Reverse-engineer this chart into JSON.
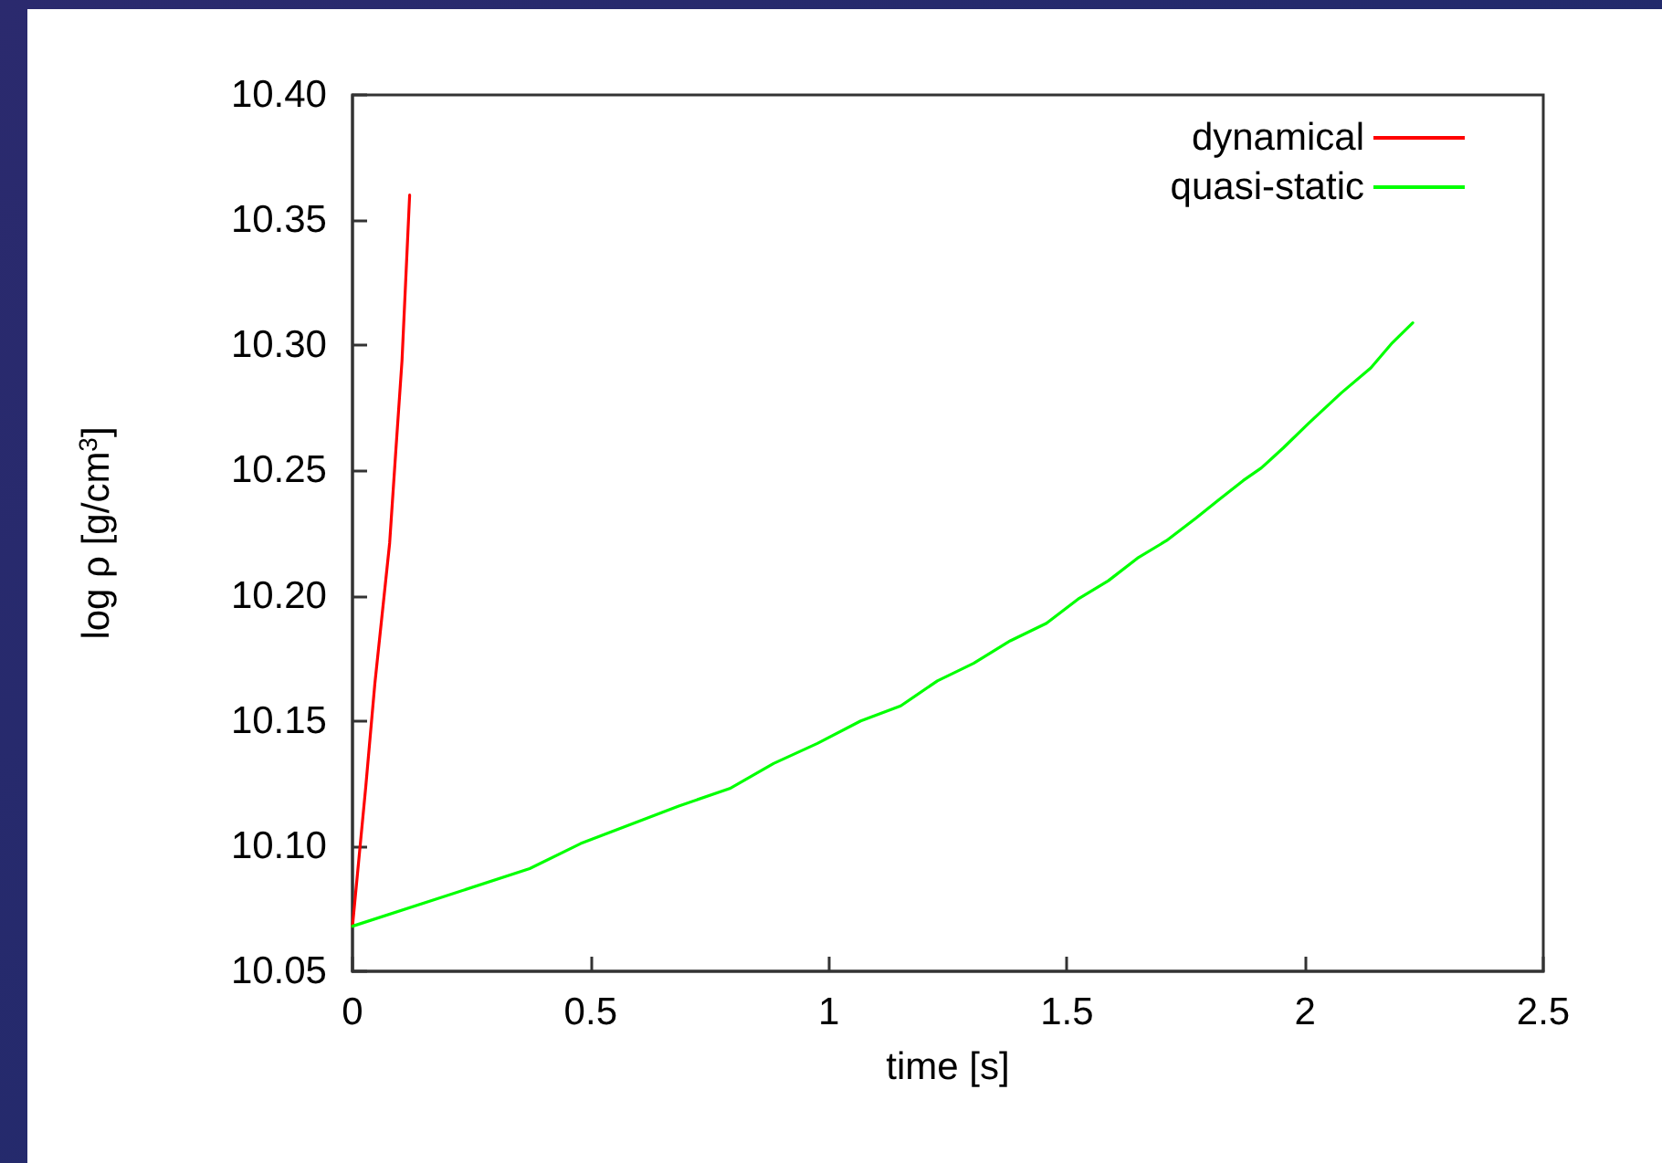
{
  "chart_data": {
    "type": "line",
    "xlabel": "time [s]",
    "ylabel": "log ρ [g/cm$^{3}$]",
    "xlim": [
      0,
      2.5
    ],
    "xticks": [
      0,
      0.5,
      1,
      1.5,
      2,
      2.5
    ],
    "ylim": [
      10.05,
      10.4
    ],
    "yticks": [
      {
        "value": 10.05,
        "label": "10.05"
      },
      {
        "value": 10.1,
        "label": "10.10"
      },
      {
        "value": 10.15,
        "label": "10.15"
      },
      {
        "value": 10.2,
        "label": "10.20"
      },
      {
        "value": 10.25,
        "label": "10.25"
      },
      {
        "value": 10.3,
        "label": "10.30"
      },
      {
        "value": 10.35,
        "label": "10.35"
      },
      {
        "value": 10.4,
        "label": "10.40"
      }
    ],
    "grid": false,
    "legend": "top right",
    "marker": "none",
    "line_style": "solid",
    "series": [
      {
        "name": "dynamical",
        "color": "#ff0000",
        "x": [
          0,
          0.028,
          0.047,
          0.078,
          0.091,
          0.104,
          0.12
        ],
        "values": [
          10.068,
          10.124,
          10.165,
          10.221,
          10.258,
          10.294,
          10.36
        ]
      },
      {
        "name": "quasi-static",
        "color": "#00ff00",
        "x": [
          0,
          0.372,
          0.479,
          0.685,
          0.792,
          0.884,
          0.976,
          1.067,
          1.151,
          1.228,
          1.304,
          1.381,
          1.457,
          1.526,
          1.587,
          1.648,
          1.709,
          1.771,
          1.817,
          1.87,
          1.908,
          1.954,
          2.008,
          2.076,
          2.138,
          2.183,
          2.226
        ],
        "values": [
          10.068,
          10.091,
          10.101,
          10.116,
          10.123,
          10.133,
          10.141,
          10.15,
          10.156,
          10.166,
          10.173,
          10.182,
          10.189,
          10.199,
          10.206,
          10.215,
          10.222,
          10.231,
          10.238,
          10.246,
          10.251,
          10.259,
          10.269,
          10.281,
          10.291,
          10.301,
          10.309
        ]
      }
    ]
  }
}
